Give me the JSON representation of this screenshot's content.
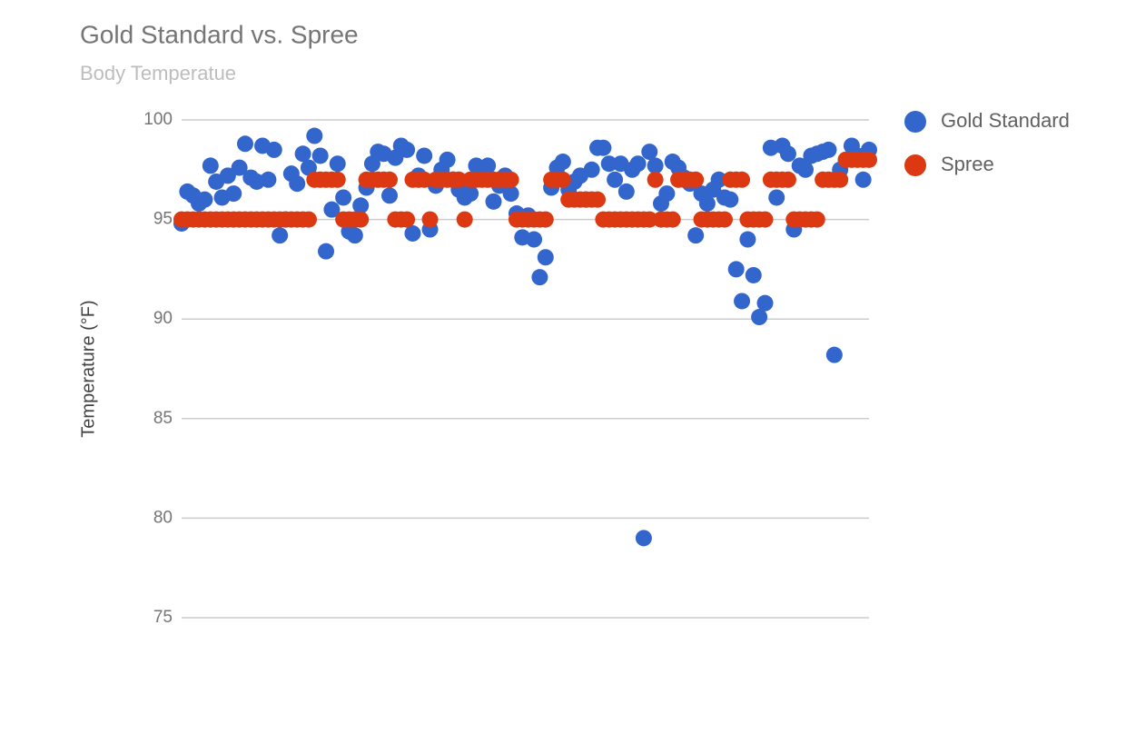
{
  "chart_data": {
    "type": "scatter",
    "title": "Gold Standard vs. Spree",
    "subtitle": "Body Temperatue",
    "y_label": "Temperature (°F)",
    "ylim": [
      75,
      100
    ],
    "yticks": [
      75,
      80,
      85,
      90,
      95,
      100
    ],
    "grid": true,
    "legend": "right",
    "series": [
      {
        "name": "Gold Standard",
        "color": "#3366cc",
        "values": [
          94.8,
          96.4,
          96.2,
          95.8,
          96,
          97.7,
          96.9,
          96.1,
          97.2,
          96.3,
          97.6,
          98.8,
          97.1,
          96.9,
          98.7,
          97.0,
          98.5,
          94.2,
          95,
          97.3,
          96.8,
          98.3,
          97.6,
          99.2,
          98.2,
          93.4,
          95.5,
          97.8,
          96.1,
          94.4,
          94.2,
          95.7,
          96.6,
          97.8,
          98.4,
          98.3,
          96.2,
          98.1,
          98.7,
          98.5,
          94.3,
          97.2,
          98.2,
          94.5,
          96.7,
          97.5,
          98.0,
          97.0,
          96.5,
          96.1,
          96.3,
          97.7,
          97.3,
          97.7,
          95.9,
          96.7,
          97.2,
          96.3,
          95.3,
          94.1,
          95.2,
          94.0,
          92.1,
          93.1,
          96.6,
          97.6,
          97.9,
          96.5,
          96.9,
          97.2,
          96.0,
          97.5,
          98.6,
          98.6,
          97.8,
          97.0,
          97.8,
          96.4,
          97.5,
          97.8,
          79.0,
          98.4,
          97.7,
          95.8,
          96.3,
          97.9,
          97.6,
          97.1,
          96.8,
          94.2,
          96.3,
          95.8,
          96.5,
          97.0,
          96.1,
          96.0,
          92.5,
          90.9,
          94.0,
          92.2,
          90.1,
          90.8,
          98.6,
          96.1,
          98.7,
          98.3,
          94.5,
          97.7,
          97.5,
          98.2,
          98.3,
          98.4,
          98.5,
          88.2,
          97.5,
          98.0,
          98.7,
          98.2,
          97.0,
          98.5
        ]
      },
      {
        "name": "Spree",
        "color": "#dc3912",
        "values": [
          95,
          95,
          95,
          95,
          95,
          95,
          95,
          95,
          95,
          95,
          95,
          95,
          95,
          95,
          95,
          95,
          95,
          95,
          95,
          95,
          95,
          95,
          95,
          97,
          97,
          97,
          97,
          97,
          95,
          95,
          95,
          95,
          97,
          97,
          97,
          97,
          97,
          95,
          95,
          95,
          97,
          97,
          97,
          95,
          97,
          97,
          97,
          97,
          97,
          95,
          97,
          97,
          97,
          97,
          97,
          97,
          97,
          97,
          95,
          95,
          95,
          95,
          95,
          95,
          97,
          97,
          97,
          96,
          96,
          96,
          96,
          96,
          96,
          95,
          95,
          95,
          95,
          95,
          95,
          95,
          95,
          95,
          97,
          95,
          95,
          95,
          97,
          97,
          97,
          97,
          95,
          95,
          95,
          95,
          95,
          97,
          97,
          97,
          95,
          95,
          95,
          95,
          97,
          97,
          97,
          97,
          95,
          95,
          95,
          95,
          95,
          97,
          97,
          97,
          97,
          98,
          98,
          98,
          98,
          98
        ]
      }
    ]
  }
}
